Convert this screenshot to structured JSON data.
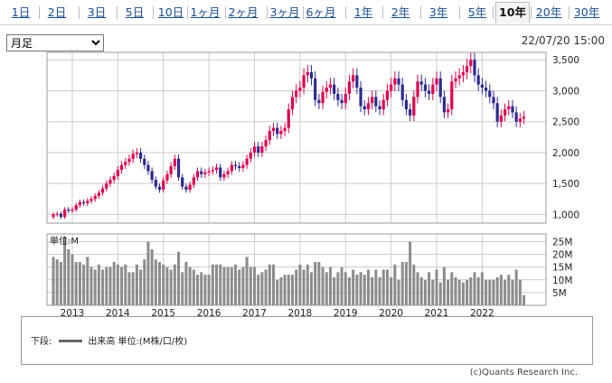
{
  "tabs": [
    {
      "label": "1日"
    },
    {
      "label": "2日"
    },
    {
      "label": "3日"
    },
    {
      "label": "5日"
    },
    {
      "label": "10日"
    },
    {
      "label": "1ヶ月"
    },
    {
      "label": "2ヶ月"
    },
    {
      "label": "3ヶ月"
    },
    {
      "label": "6ヶ月"
    },
    {
      "label": "1年"
    },
    {
      "label": "2年"
    },
    {
      "label": "3年"
    },
    {
      "label": "5年"
    },
    {
      "label": "10年"
    },
    {
      "label": "20年"
    },
    {
      "label": "30年"
    }
  ],
  "active_tab": "10年",
  "period_select": {
    "selected": "月足",
    "options": [
      "月足"
    ]
  },
  "timestamp": "22/07/20 15:00",
  "legend": {
    "prefix": "下段:",
    "label": "出来高 単位:(M株/口/枚)"
  },
  "copyright": "(c)Quants Research Inc.",
  "colors": {
    "up": "#e0004d",
    "down": "#2b2b8f",
    "volume": "#8c8c8c",
    "grid": "#cccccc"
  },
  "chart_data": {
    "type": "candlestick",
    "price_axis": {
      "ticks": [
        1000,
        1500,
        2000,
        2500,
        3000,
        3500
      ],
      "labels": [
        "1,000",
        "1,500",
        "2,000",
        "2,500",
        "3,000",
        "3,500"
      ],
      "range": [
        860,
        3620
      ]
    },
    "volume_axis": {
      "unit_label": "単位:M",
      "ticks": [
        5,
        10,
        15,
        20,
        25
      ],
      "labels": [
        "5M",
        "10M",
        "15M",
        "20M",
        "25M"
      ],
      "range": [
        0,
        28
      ]
    },
    "year_labels": [
      "2013",
      "2014",
      "2015",
      "2016",
      "2017",
      "2018",
      "2019",
      "2020",
      "2021",
      "2022"
    ],
    "start": "2012-08",
    "monthly_close": [
      1000,
      1010,
      960,
      1080,
      1060,
      1080,
      1150,
      1200,
      1180,
      1220,
      1250,
      1300,
      1350,
      1420,
      1500,
      1560,
      1620,
      1720,
      1800,
      1850,
      1900,
      1980,
      2000,
      1900,
      1800,
      1700,
      1560,
      1450,
      1400,
      1550,
      1650,
      1780,
      1900,
      1600,
      1450,
      1400,
      1480,
      1600,
      1700,
      1650,
      1680,
      1700,
      1720,
      1760,
      1600,
      1650,
      1700,
      1800,
      1780,
      1750,
      1800,
      1900,
      2000,
      2100,
      2000,
      2100,
      2200,
      2350,
      2400,
      2300,
      2350,
      2400,
      2700,
      2900,
      3000,
      3050,
      3250,
      3300,
      3200,
      2850,
      2800,
      2980,
      3050,
      3100,
      2950,
      2850,
      2800,
      2950,
      3150,
      3250,
      3050,
      2750,
      2700,
      2800,
      2900,
      2750,
      2700,
      2850,
      3000,
      3100,
      3200,
      3100,
      2850,
      2700,
      2600,
      2900,
      3150,
      3100,
      3000,
      2950,
      3100,
      3200,
      2900,
      2650,
      2700,
      3150,
      3200,
      3250,
      3300,
      3400,
      3500,
      3250,
      3100,
      3050,
      3000,
      2900,
      2800,
      2500,
      2600,
      2700,
      2750,
      2650,
      2500,
      2550,
      2580
    ],
    "monthly_volume": [
      19,
      18,
      17,
      27,
      22,
      20,
      17,
      17,
      16,
      19,
      15,
      14,
      16,
      14,
      15,
      15,
      17,
      16,
      15,
      16,
      13,
      13,
      16,
      14,
      18,
      25,
      22,
      18,
      17,
      16,
      15,
      14,
      16,
      21,
      13,
      17,
      15,
      14,
      12,
      13,
      12,
      12,
      16,
      16,
      16,
      15,
      15,
      15,
      16,
      14,
      15,
      19,
      15,
      15,
      12,
      13,
      14,
      16,
      16,
      10,
      11,
      12,
      12,
      12,
      14,
      16,
      14,
      16,
      13,
      17,
      17,
      15,
      13,
      15,
      11,
      13,
      15,
      13,
      11,
      14,
      12,
      13,
      12,
      14,
      11,
      14,
      11,
      14,
      14,
      11,
      16,
      10,
      17,
      17,
      25,
      16,
      13,
      11,
      10,
      13,
      10,
      14,
      9,
      15,
      10,
      13,
      11,
      10,
      9,
      10,
      11,
      13,
      11,
      13,
      10,
      10,
      10,
      11,
      12,
      10,
      12,
      10,
      14,
      10,
      4
    ]
  }
}
